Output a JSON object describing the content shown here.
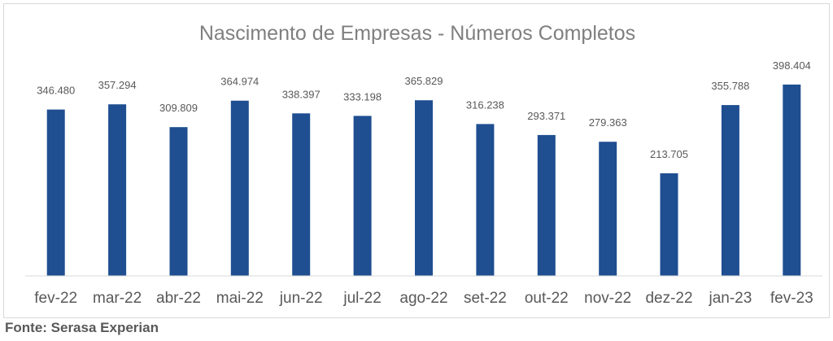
{
  "chart_data": {
    "type": "bar",
    "title": "Nascimento de Empresas - Números Completos",
    "categories": [
      "fev-22",
      "mar-22",
      "abr-22",
      "mai-22",
      "jun-22",
      "jul-22",
      "ago-22",
      "set-22",
      "out-22",
      "nov-22",
      "dez-22",
      "jan-23",
      "fev-23"
    ],
    "values": [
      346480,
      357294,
      309809,
      364974,
      338397,
      333198,
      365829,
      316238,
      293371,
      279363,
      213705,
      355788,
      398404
    ],
    "value_labels": [
      "346.480",
      "357.294",
      "309.809",
      "364.974",
      "338.397",
      "333.198",
      "365.829",
      "316.238",
      "293.371",
      "279.363",
      "213.705",
      "355.788",
      "398.404"
    ],
    "xlabel": "",
    "ylabel": "",
    "ylim": [
      0,
      400000
    ],
    "grid": false,
    "legend": "none",
    "bar_color": "#1f4e91"
  },
  "source_note": "Fonte: Serasa Experian"
}
